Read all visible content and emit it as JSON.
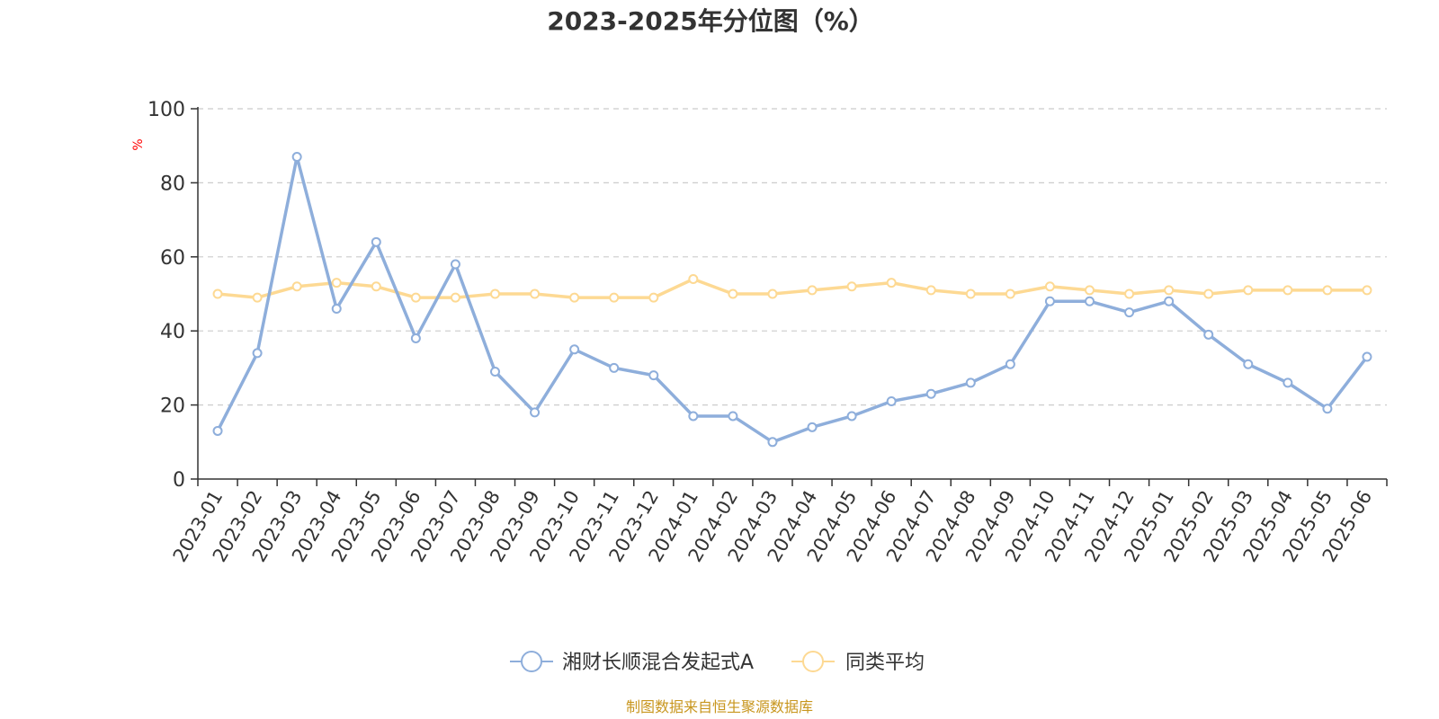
{
  "chart_data": {
    "type": "line",
    "title": "2023-2025年分位图（%）",
    "ylabel": "%",
    "ylim": [
      0,
      100
    ],
    "yticks": [
      "0",
      "20",
      "40",
      "60",
      "80",
      "100"
    ],
    "grid": true,
    "legend_position": "bottom",
    "categories": [
      "2023-01",
      "2023-02",
      "2023-03",
      "2023-04",
      "2023-05",
      "2023-06",
      "2023-07",
      "2023-08",
      "2023-09",
      "2023-10",
      "2023-11",
      "2023-12",
      "2024-01",
      "2024-02",
      "2024-03",
      "2024-04",
      "2024-05",
      "2024-06",
      "2024-07",
      "2024-08",
      "2024-09",
      "2024-10",
      "2024-11",
      "2024-12",
      "2025-01",
      "2025-02",
      "2025-03",
      "2025-04",
      "2025-05",
      "2025-06"
    ],
    "series": [
      {
        "name": "湘财长顺混合发起式A",
        "color": "#8eaedb",
        "values": [
          13,
          34,
          87,
          46,
          64,
          38,
          58,
          29,
          18,
          35,
          30,
          28,
          17,
          17,
          10,
          14,
          17,
          21,
          23,
          26,
          31,
          48,
          48,
          45,
          48,
          39,
          31,
          26,
          19,
          33
        ]
      },
      {
        "name": "同类平均",
        "color": "#fdd993",
        "values": [
          50,
          49,
          52,
          53,
          52,
          49,
          49,
          50,
          50,
          49,
          49,
          49,
          54,
          50,
          50,
          51,
          52,
          53,
          51,
          50,
          50,
          52,
          51,
          50,
          51,
          50,
          51,
          51,
          51,
          51
        ]
      }
    ]
  },
  "source": "制图数据来自恒生聚源数据库",
  "colors": {
    "axis": "#333333",
    "grid": "#cccccc",
    "unit_label": "#ff0000",
    "source_text": "#c8961e"
  }
}
